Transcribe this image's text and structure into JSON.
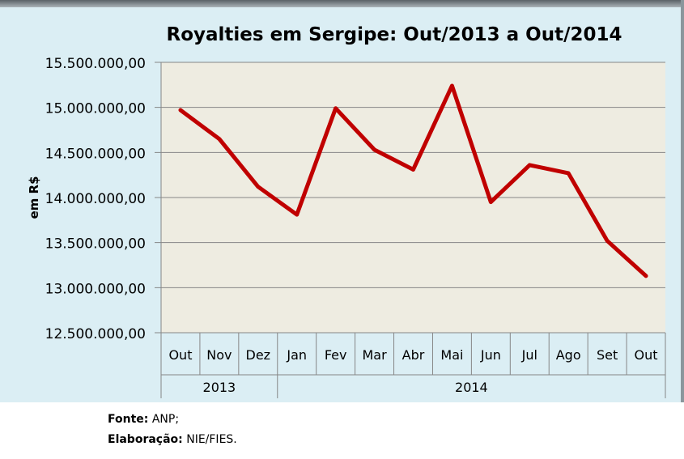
{
  "chart_data": {
    "type": "line",
    "title": "Royalties em Sergipe: Out/2013 a Out/2014",
    "ylabel": "em R$",
    "xlabel": "",
    "categories": [
      "Out",
      "Nov",
      "Dez",
      "Jan",
      "Fev",
      "Mar",
      "Abr",
      "Mai",
      "Jun",
      "Jul",
      "Ago",
      "Set",
      "Out"
    ],
    "groups": [
      {
        "label": "2013",
        "count": 3
      },
      {
        "label": "2014",
        "count": 10
      }
    ],
    "series": [
      {
        "name": "Royalties",
        "color": "#c00000",
        "values": [
          14970000,
          14650000,
          14120000,
          13810000,
          14990000,
          14530000,
          14310000,
          15240000,
          13950000,
          14360000,
          14270000,
          13520000,
          13130000
        ]
      }
    ],
    "ylim": [
      12500000,
      15500000
    ],
    "yticks": [
      12500000,
      13000000,
      13500000,
      14000000,
      14500000,
      15000000,
      15500000
    ],
    "ytick_labels": [
      "12.500.000,00",
      "13.000.000,00",
      "13.500.000,00",
      "14.000.000,00",
      "14.500.000,00",
      "15.000.000,00",
      "15.500.000,00"
    ],
    "grid": true,
    "legend": "none",
    "plot_bg": "#eeece1",
    "chart_bg": "#dbeef4"
  },
  "source": {
    "label": "Fonte:",
    "value": "ANP;"
  },
  "elaboration": {
    "label": "Elaboração:",
    "value": "NIE/FIES."
  }
}
